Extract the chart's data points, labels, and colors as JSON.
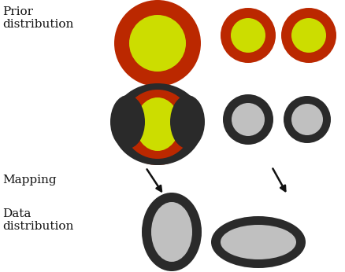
{
  "bg_color": "#ffffff",
  "prior_label": "Prior\ndistribution",
  "mapping_label": "Mapping",
  "data_label": "Data\ndistribution",
  "colors": {
    "dark_red": "#bb2800",
    "yellow_green": "#ccdd00",
    "dark_gray": "#2a2a2a",
    "light_gray": "#c0c0c0",
    "black": "#111111"
  },
  "label_fontsize": 11
}
